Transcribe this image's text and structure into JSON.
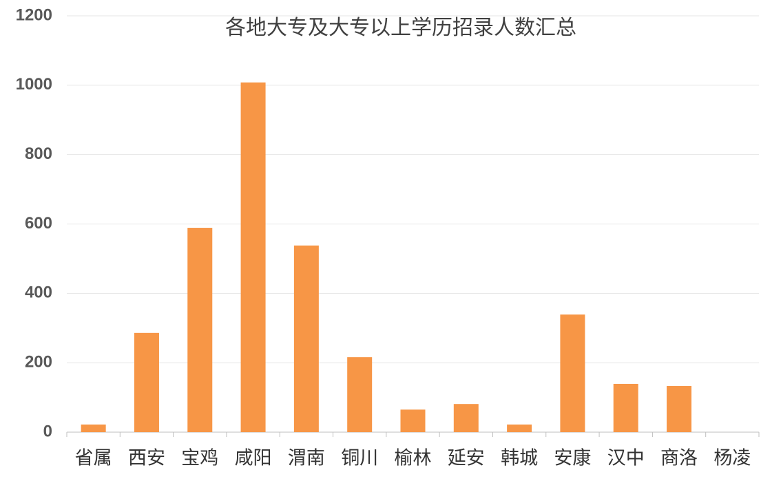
{
  "chart_data": {
    "type": "bar",
    "title": "各地大专及大专以上学历招录人数汇总",
    "categories": [
      "省属",
      "西安",
      "宝鸡",
      "咸阳",
      "渭南",
      "铜川",
      "榆林",
      "延安",
      "韩城",
      "安康",
      "汉中",
      "商洛",
      "杨凌"
    ],
    "values": [
      22,
      286,
      589,
      1008,
      538,
      216,
      65,
      81,
      22,
      339,
      139,
      133,
      0
    ],
    "color": "#f79646",
    "ylim": [
      0,
      1200
    ],
    "yticks": [
      0,
      200,
      400,
      600,
      800,
      1000,
      1200
    ],
    "grid": true
  }
}
